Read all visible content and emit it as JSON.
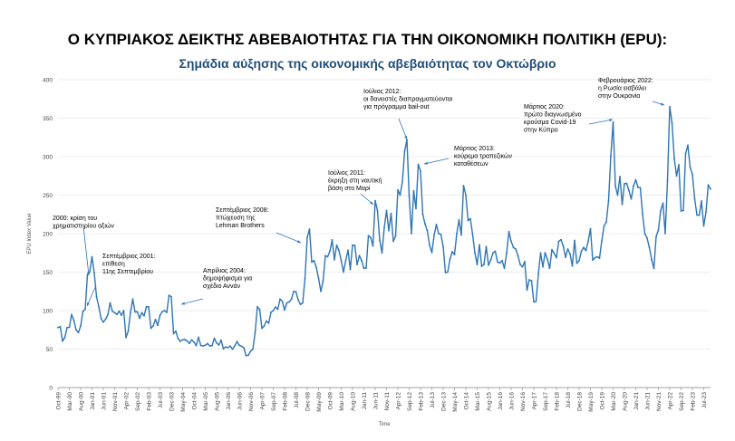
{
  "title": "Ο ΚΥΠΡΙΑΚΟΣ ΔΕΙΚΤΗΣ ΑΒΕΒΑΙΟΤΗΤΑΣ ΓΙΑ ΤΗΝ ΟΙΚΟΝΟΜΙΚΗ ΠΟΛΙΤΙΚΗ (EPU):",
  "subtitle": "Σημάδια αύξησης της οικονομικής αβεβαιότητας τον Οκτώβριο",
  "colors": {
    "line": "#2e75b6",
    "title": "#000000",
    "subtitle": "#1f4e79",
    "grid": "#d9d9d9"
  },
  "chart_data": {
    "type": "line",
    "xlabel": "Time",
    "ylabel": "EPU  Index Value",
    "ylim": [
      0,
      400
    ],
    "y_ticks": [
      0,
      50,
      100,
      150,
      200,
      250,
      300,
      350,
      400
    ],
    "grid": "horizontal",
    "x_start": "1999-10",
    "x_ticks": [
      "Oct-99",
      "Mar-00",
      "Aug-00",
      "Jan-01",
      "Jun-01",
      "Nov-01",
      "Apr-02",
      "Sep-02",
      "Feb-03",
      "Jul-03",
      "Dec-03",
      "May-04",
      "Oct-04",
      "Mar-05",
      "Aug-05",
      "Jan-06",
      "Jun-06",
      "Nov-06",
      "Apr-07",
      "Sep-07",
      "Feb-08",
      "Jul-08",
      "Dec-08",
      "May-09",
      "Oct-09",
      "Mar-10",
      "Aug-10",
      "Jan-11",
      "Jun-11",
      "Nov-11",
      "Apr-12",
      "Sep-12",
      "Feb-13",
      "Jul-13",
      "Dec-13",
      "May-14",
      "Oct-14",
      "Mar-15",
      "Aug-15",
      "Jan-16",
      "Jun-16",
      "Nov-16",
      "Apr-17",
      "Sep-17",
      "Feb-18",
      "Jul-18",
      "Dec-18",
      "May-19",
      "Oct-19",
      "Mar-20",
      "Aug-20",
      "Jan-21",
      "Jun-21",
      "Nov-21",
      "Apr-22",
      "Sep-22",
      "Feb-23",
      "Jul-23"
    ],
    "anchors": [
      [
        "1999-10",
        78
      ],
      [
        "2000-01",
        65
      ],
      [
        "2000-04",
        95
      ],
      [
        "2000-06",
        75
      ],
      [
        "2000-08",
        80
      ],
      [
        "2000-12",
        150
      ],
      [
        "2001-01",
        170
      ],
      [
        "2001-03",
        118
      ],
      [
        "2001-06",
        85
      ],
      [
        "2001-09",
        110
      ],
      [
        "2001-12",
        95
      ],
      [
        "2002-03",
        100
      ],
      [
        "2002-04",
        65
      ],
      [
        "2002-07",
        115
      ],
      [
        "2002-10",
        90
      ],
      [
        "2003-01",
        105
      ],
      [
        "2003-04",
        80
      ],
      [
        "2003-09",
        100
      ],
      [
        "2003-12",
        118
      ],
      [
        "2004-01",
        70
      ],
      [
        "2004-04",
        60
      ],
      [
        "2004-09",
        62
      ],
      [
        "2005-03",
        55
      ],
      [
        "2005-08",
        58
      ],
      [
        "2006-01",
        52
      ],
      [
        "2006-06",
        55
      ],
      [
        "2006-10",
        42
      ],
      [
        "2006-12",
        50
      ],
      [
        "2007-02",
        105
      ],
      [
        "2007-05",
        80
      ],
      [
        "2007-09",
        100
      ],
      [
        "2007-12",
        115
      ],
      [
        "2008-03",
        110
      ],
      [
        "2008-06",
        125
      ],
      [
        "2008-10",
        110
      ],
      [
        "2008-12",
        195
      ],
      [
        "2009-03",
        165
      ],
      [
        "2009-06",
        125
      ],
      [
        "2009-09",
        170
      ],
      [
        "2010-01",
        185
      ],
      [
        "2010-04",
        150
      ],
      [
        "2010-08",
        185
      ],
      [
        "2011-01",
        155
      ],
      [
        "2011-04",
        195
      ],
      [
        "2011-07",
        230
      ],
      [
        "2011-09",
        175
      ],
      [
        "2011-11",
        230
      ],
      [
        "2012-02",
        190
      ],
      [
        "2012-05",
        250
      ],
      [
        "2012-08",
        322
      ],
      [
        "2012-10",
        200
      ],
      [
        "2013-01",
        290
      ],
      [
        "2013-03",
        225
      ],
      [
        "2013-06",
        185
      ],
      [
        "2013-10",
        200
      ],
      [
        "2014-02",
        150
      ],
      [
        "2014-06",
        200
      ],
      [
        "2014-10",
        250
      ],
      [
        "2015-02",
        175
      ],
      [
        "2015-06",
        160
      ],
      [
        "2015-10",
        175
      ],
      [
        "2016-02",
        165
      ],
      [
        "2016-06",
        190
      ],
      [
        "2016-10",
        160
      ],
      [
        "2017-02",
        140
      ],
      [
        "2017-05",
        112
      ],
      [
        "2017-07",
        175
      ],
      [
        "2017-11",
        155
      ],
      [
        "2018-03",
        190
      ],
      [
        "2018-07",
        180
      ],
      [
        "2018-12",
        165
      ],
      [
        "2019-04",
        190
      ],
      [
        "2019-08",
        170
      ],
      [
        "2019-12",
        215
      ],
      [
        "2020-03",
        345
      ],
      [
        "2020-05",
        250
      ],
      [
        "2020-08",
        265
      ],
      [
        "2020-11",
        245
      ],
      [
        "2021-02",
        260
      ],
      [
        "2021-05",
        200
      ],
      [
        "2021-09",
        155
      ],
      [
        "2021-12",
        230
      ],
      [
        "2022-02",
        200
      ],
      [
        "2022-04",
        365
      ],
      [
        "2022-07",
        275
      ],
      [
        "2022-10",
        230
      ],
      [
        "2022-12",
        315
      ],
      [
        "2023-03",
        245
      ],
      [
        "2023-07",
        210
      ],
      [
        "2023-10",
        258
      ]
    ],
    "annotations": [
      {
        "id": "a2000",
        "lines": [
          "2000: κρίση του",
          "χρηματιστηρίου αξιών"
        ],
        "arrow_to": "2000-12"
      },
      {
        "id": "a2001",
        "lines": [
          "Σεπτέμβριος 2001:",
          "επίθεση",
          "11ης Σεπτεμβρίου"
        ],
        "arrow_to": "2001-09"
      },
      {
        "id": "a2004",
        "lines": [
          "Απρίλιος 2004:",
          "δημοψήφισμα για",
          "σχέδιο Αννάν"
        ],
        "arrow_to": "2004-04"
      },
      {
        "id": "a2008",
        "lines": [
          "Σεπτέμβριος 2008:",
          "πτώχευση της",
          "Lehman Brothers"
        ],
        "arrow_to": "2008-09"
      },
      {
        "id": "a2011",
        "lines": [
          "Ιούλιος 2011:",
          "έκρηξη στη ναυτική",
          "βάση στο Μαρί"
        ],
        "arrow_to": "2011-07"
      },
      {
        "id": "a2012",
        "lines": [
          "Ιούλιος 2012:",
          "οι δανειστές διαπραγματεύονται",
          "για πρόγραμμα bail-out"
        ],
        "arrow_to": "2012-07"
      },
      {
        "id": "a2013",
        "lines": [
          "Μάρτιος 2013:",
          "κούρεμα τραπεζικών",
          "καταθέσεων"
        ],
        "arrow_to": "2013-03"
      },
      {
        "id": "a2020",
        "lines": [
          "Μάρτιος 2020:",
          "πρώτο διαγνωσμένο",
          "κρούσμα Covid-19",
          "στην Κύπρο"
        ],
        "arrow_to": "2020-03"
      },
      {
        "id": "a2022",
        "lines": [
          "Φεβρουάριος 2022:",
          "η Ρωσία εισβάλει",
          "στην Ουκρανία"
        ],
        "arrow_to": "2022-02"
      }
    ]
  }
}
